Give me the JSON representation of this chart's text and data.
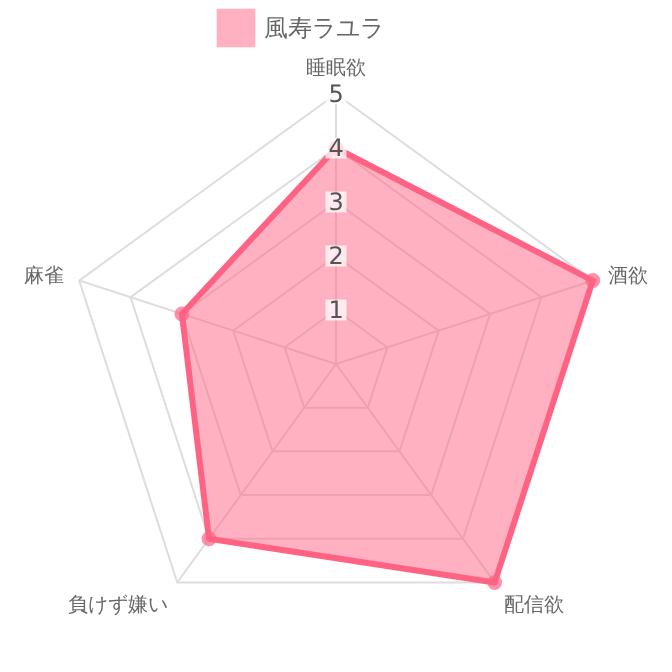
{
  "chart_data": {
    "type": "radar",
    "categories": [
      "睡眠欲",
      "酒欲",
      "配信欲",
      "負けず嫌い",
      "麻雀"
    ],
    "series": [
      {
        "name": "風寿ラユラ",
        "color": "#ff6384",
        "values": [
          4,
          5,
          5,
          4,
          3
        ]
      }
    ],
    "ylim": [
      0,
      5
    ],
    "yticks": [
      1,
      2,
      3,
      4,
      5
    ],
    "grid": true,
    "legend": "top",
    "marker": "circle"
  }
}
